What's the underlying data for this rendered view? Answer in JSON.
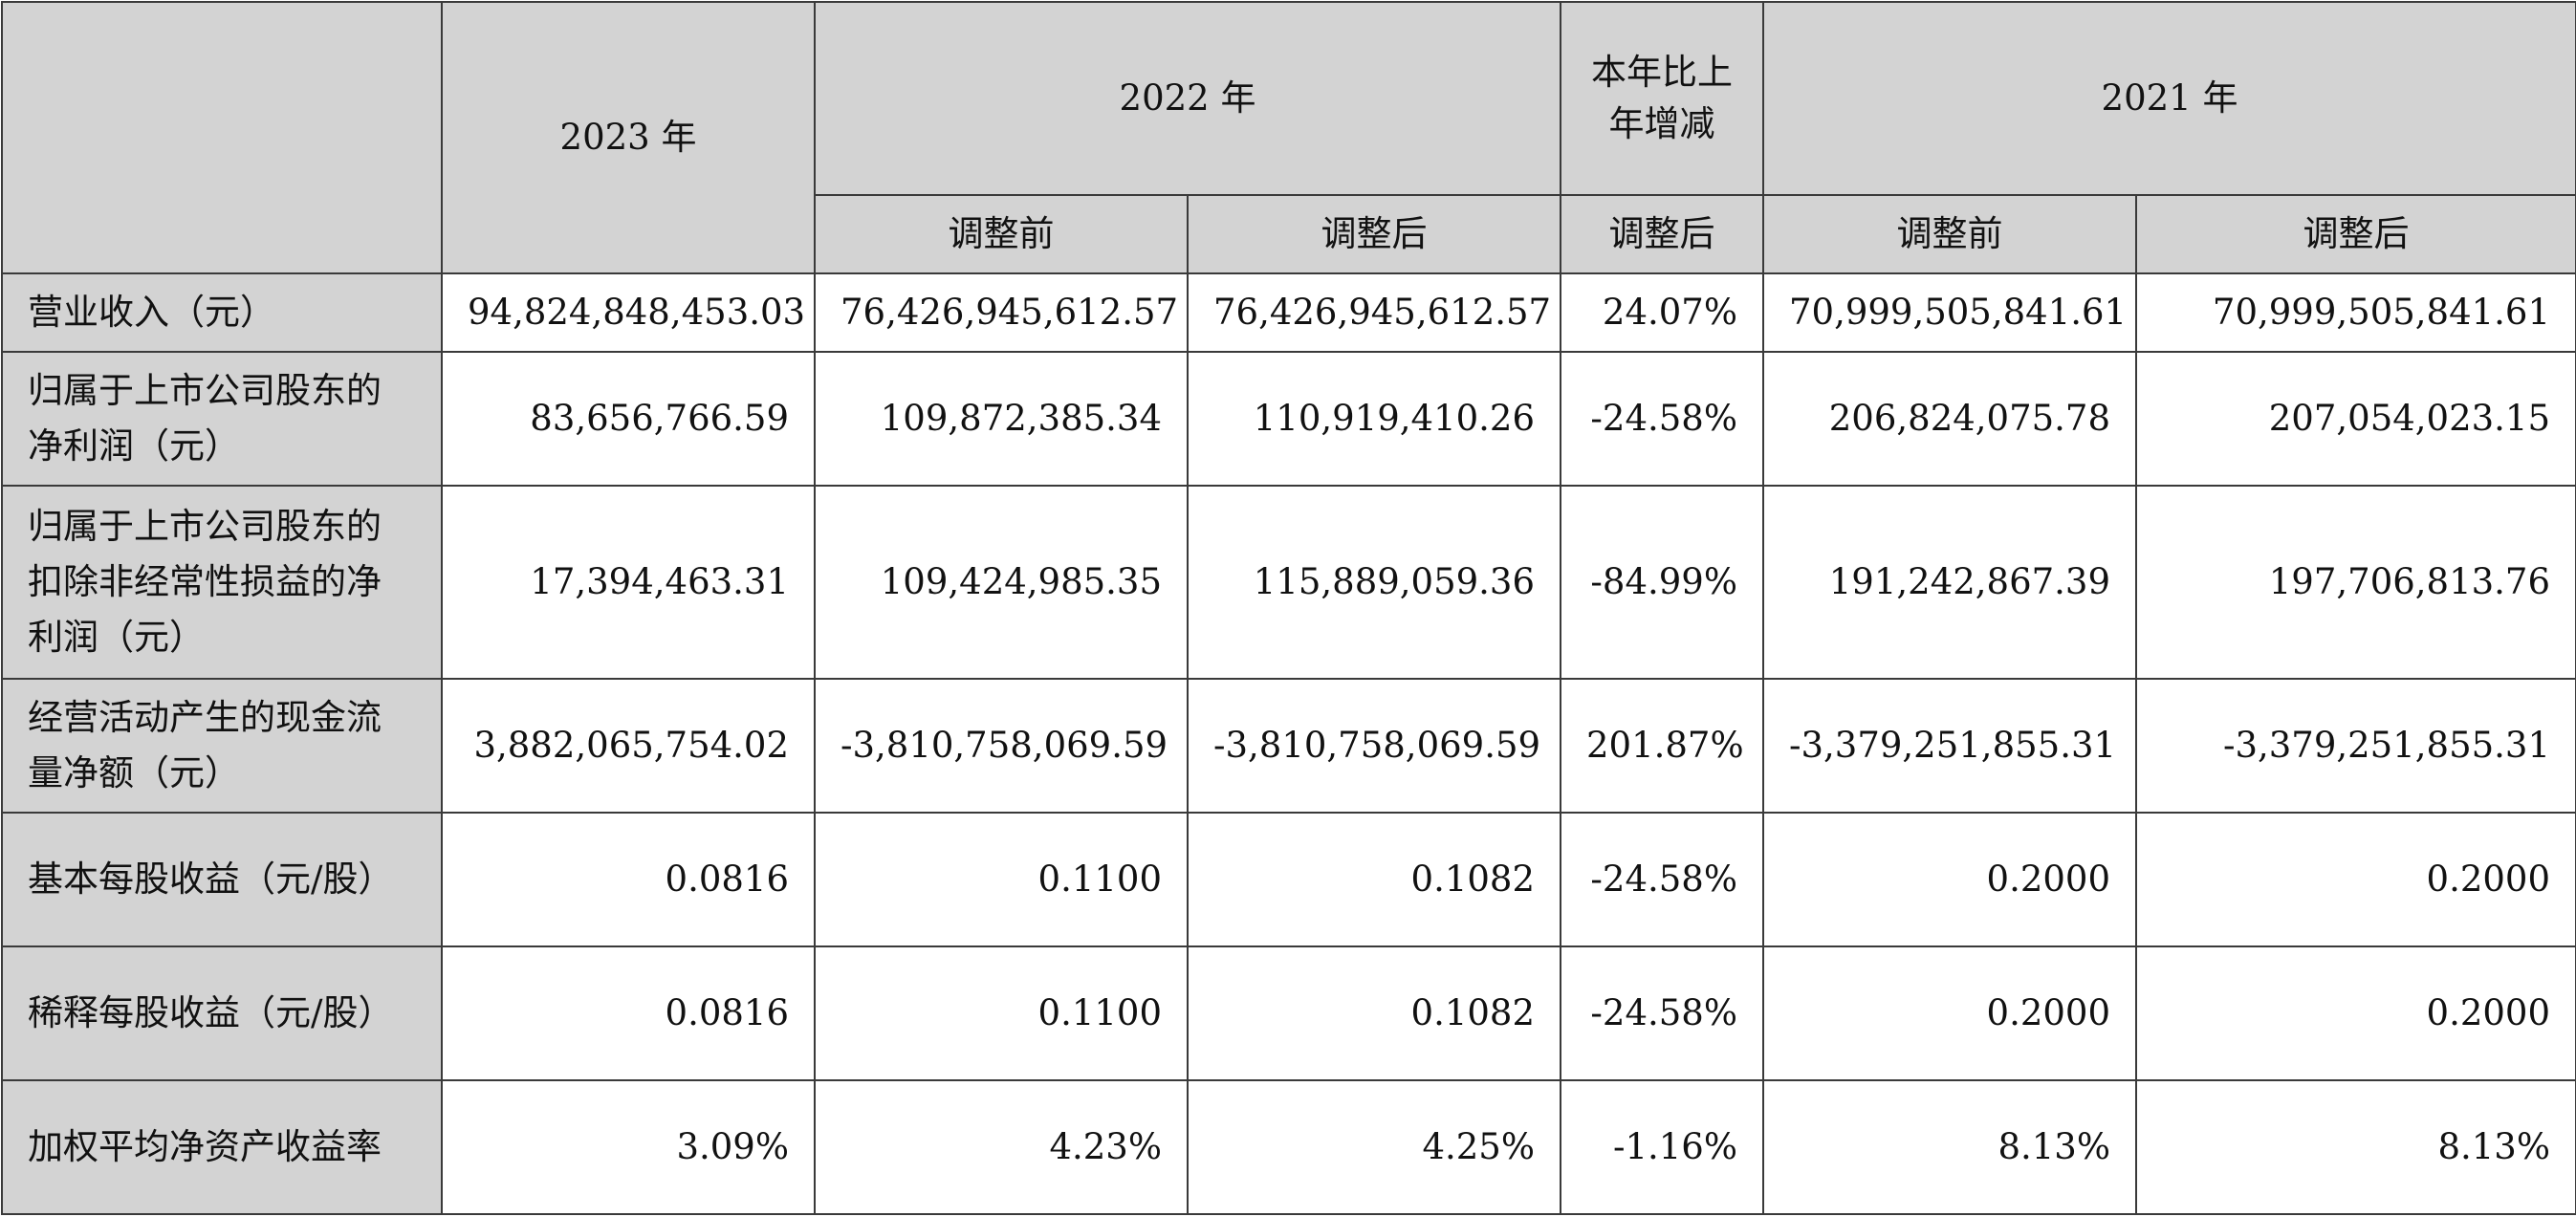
{
  "header": {
    "col_2023": "2023 年",
    "col_2022": "2022 年",
    "col_change": "本年比上年增减",
    "col_2021": "2021 年",
    "before_adjust": "调整前",
    "after_adjust": "调整后"
  },
  "rows": [
    {
      "label": "营业收入（元）",
      "v2023": "94,824,848,453.03",
      "v2022_before": "76,426,945,612.57",
      "v2022_after": "76,426,945,612.57",
      "change": "24.07%",
      "v2021_before": "70,999,505,841.61",
      "v2021_after": "70,999,505,841.61"
    },
    {
      "label": "归属于上市公司股东的净利润（元）",
      "v2023": "83,656,766.59",
      "v2022_before": "109,872,385.34",
      "v2022_after": "110,919,410.26",
      "change": "-24.58%",
      "v2021_before": "206,824,075.78",
      "v2021_after": "207,054,023.15"
    },
    {
      "label": "归属于上市公司股东的扣除非经常性损益的净利润（元）",
      "v2023": "17,394,463.31",
      "v2022_before": "109,424,985.35",
      "v2022_after": "115,889,059.36",
      "change": "-84.99%",
      "v2021_before": "191,242,867.39",
      "v2021_after": "197,706,813.76"
    },
    {
      "label": "经营活动产生的现金流量净额（元）",
      "v2023": "3,882,065,754.02",
      "v2022_before": "-3,810,758,069.59",
      "v2022_after": "-3,810,758,069.59",
      "change": "201.87%",
      "v2021_before": "-3,379,251,855.31",
      "v2021_after": "-3,379,251,855.31"
    },
    {
      "label": "基本每股收益（元/股）",
      "v2023": "0.0816",
      "v2022_before": "0.1100",
      "v2022_after": "0.1082",
      "change": "-24.58%",
      "v2021_before": "0.2000",
      "v2021_after": "0.2000"
    },
    {
      "label": "稀释每股收益（元/股）",
      "v2023": "0.0816",
      "v2022_before": "0.1100",
      "v2022_after": "0.1082",
      "change": "-24.58%",
      "v2021_before": "0.2000",
      "v2021_after": "0.2000"
    },
    {
      "label": "加权平均净资产收益率",
      "v2023": "3.09%",
      "v2022_before": "4.23%",
      "v2022_after": "4.25%",
      "change": "-1.16%",
      "v2021_before": "8.13%",
      "v2021_after": "8.13%"
    }
  ]
}
